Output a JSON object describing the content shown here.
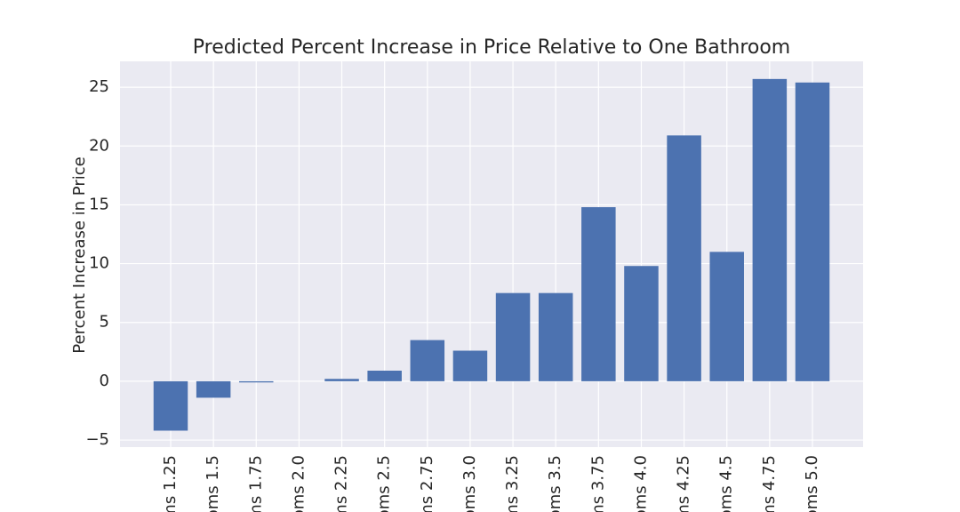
{
  "chart_data": {
    "type": "bar",
    "title": "Predicted Percent Increase in Price Relative to One Bathroom",
    "y_label": "Percent Increase in Price",
    "categories": [
      "ms 1.25",
      "oms 1.5",
      "ms 1.75",
      "oms 2.0",
      "ms 2.25",
      "oms 2.5",
      "ms 2.75",
      "oms 3.0",
      "ms 3.25",
      "oms 3.5",
      "ms 3.75",
      "oms 4.0",
      "ms 4.25",
      "oms 4.5",
      "ms 4.75",
      "oms 5.0"
    ],
    "values": [
      -4.2,
      -1.4,
      -0.1,
      0,
      0.2,
      0.9,
      3.5,
      2.6,
      7.5,
      7.5,
      14.8,
      9.8,
      20.9,
      11.0,
      25.7,
      25.4
    ],
    "color": "#4c72b0",
    "ylim": [
      -5.6,
      27.2
    ],
    "yticks": [
      {
        "value": -5,
        "label": "−5"
      },
      0,
      5,
      10,
      15,
      20,
      25
    ],
    "grid": true
  }
}
